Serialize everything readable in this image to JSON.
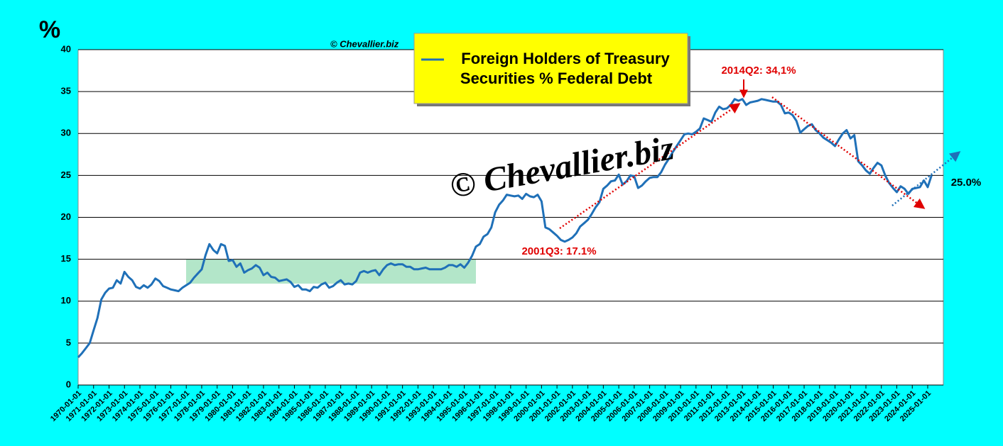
{
  "chart_data": {
    "type": "line",
    "title": [
      "Foreign Holders of Treasury",
      "Securities % Federal Debt"
    ],
    "y_label": "%",
    "watermark": "© Chevallier.biz",
    "annotations": [
      "2014Q2: 34,1%",
      "2001Q3: 17.1%",
      "25.0%"
    ],
    "color": "#1f70b8",
    "ylim": [
      0,
      40
    ],
    "yticks": [
      0,
      5,
      10,
      15,
      20,
      25,
      30,
      35,
      40
    ],
    "grid": true,
    "categories": [
      "1970-01-01",
      null,
      null,
      null,
      "1971-01-01",
      null,
      null,
      null,
      "1972-01-01",
      null,
      null,
      null,
      "1973-01-01",
      null,
      null,
      null,
      "1974-01-01",
      null,
      null,
      null,
      "1975-01-01",
      null,
      null,
      null,
      "1976-01-01",
      null,
      null,
      null,
      "1977-01-01",
      null,
      null,
      null,
      "1978-01-01",
      null,
      null,
      null,
      "1979-01-01",
      null,
      null,
      null,
      "1980-01-01",
      null,
      null,
      null,
      "1981-01-01",
      null,
      null,
      null,
      "1982-01-01",
      null,
      null,
      null,
      "1983-01-01",
      null,
      null,
      null,
      "1984-01-01",
      null,
      null,
      null,
      "1985-01-01",
      null,
      null,
      null,
      "1986-01-01",
      null,
      null,
      null,
      "1987-01-01",
      null,
      null,
      null,
      "1988-01-01",
      null,
      null,
      null,
      "1989-01-01",
      null,
      null,
      null,
      "1990-01-01",
      null,
      null,
      null,
      "1991-01-01",
      null,
      null,
      null,
      "1992-01-01",
      null,
      null,
      null,
      "1993-01-01",
      null,
      null,
      null,
      "1994-01-01",
      null,
      null,
      null,
      "1995-01-01",
      null,
      null,
      null,
      "1996-01-01",
      null,
      null,
      null,
      "1997-01-01",
      null,
      null,
      null,
      "1998-01-01",
      null,
      null,
      null,
      "1999-01-01",
      null,
      null,
      null,
      "2000-01-01",
      null,
      null,
      null,
      "2001-01-01",
      null,
      null,
      null,
      "2002-01-01",
      null,
      null,
      null,
      "2003-01-01",
      null,
      null,
      null,
      "2004-01-01",
      null,
      null,
      null,
      "2005-01-01",
      null,
      null,
      null,
      "2006-01-01",
      null,
      null,
      null,
      "2007-01-01",
      null,
      null,
      null,
      "2008-01-01",
      null,
      null,
      null,
      "2009-01-01",
      null,
      null,
      null,
      "2010-01-01",
      null,
      null,
      null,
      "2011-01-01",
      null,
      null,
      null,
      "2012-01-01",
      null,
      null,
      null,
      "2013-01-01",
      null,
      null,
      null,
      "2014-01-01",
      null,
      null,
      null,
      "2015-01-01",
      null,
      null,
      null,
      "2016-01-01",
      null,
      null,
      null,
      "2017-01-01",
      null,
      null,
      null,
      "2018-01-01",
      null,
      null,
      null,
      "2019-01-01",
      null,
      null,
      null,
      "2020-01-01",
      null,
      null,
      null,
      "2021-01-01",
      null,
      null,
      null,
      "2022-01-01",
      null,
      null,
      null,
      "2023-01-01",
      null,
      null,
      null,
      "2024-01-01",
      null,
      null,
      null,
      "2025-01-01",
      null
    ],
    "values": [
      3.3,
      3.8,
      4.4,
      5.0,
      6.5,
      8.0,
      10.2,
      11.0,
      11.5,
      11.6,
      12.5,
      12.1,
      13.5,
      12.9,
      12.5,
      11.7,
      11.5,
      11.9,
      11.6,
      12.0,
      12.7,
      12.4,
      11.8,
      11.6,
      11.4,
      11.3,
      11.2,
      11.6,
      11.9,
      12.2,
      12.8,
      13.3,
      13.8,
      15.5,
      16.8,
      16.1,
      15.7,
      16.8,
      16.6,
      14.8,
      14.9,
      14.1,
      14.5,
      13.4,
      13.7,
      13.9,
      14.3,
      14.0,
      13.1,
      13.4,
      12.9,
      12.8,
      12.4,
      12.5,
      12.6,
      12.3,
      11.7,
      11.9,
      11.4,
      11.4,
      11.2,
      11.7,
      11.6,
      12.0,
      12.2,
      11.6,
      11.8,
      12.2,
      12.5,
      12.0,
      12.1,
      12.0,
      12.4,
      13.4,
      13.6,
      13.4,
      13.6,
      13.7,
      13.1,
      13.8,
      14.3,
      14.5,
      14.3,
      14.4,
      14.4,
      14.1,
      14.1,
      13.8,
      13.8,
      13.9,
      14.0,
      13.8,
      13.8,
      13.8,
      13.8,
      14.0,
      14.3,
      14.3,
      14.1,
      14.4,
      14.0,
      14.6,
      15.4,
      16.5,
      16.8,
      17.7,
      18.0,
      18.8,
      20.6,
      21.5,
      22.0,
      22.7,
      22.6,
      22.5,
      22.6,
      22.2,
      22.8,
      22.5,
      22.4,
      22.7,
      21.9,
      18.8,
      18.6,
      18.2,
      17.8,
      17.3,
      17.1,
      17.3,
      17.6,
      18.1,
      18.9,
      19.3,
      19.7,
      20.4,
      21.2,
      21.8,
      23.4,
      23.8,
      24.3,
      24.4,
      25.1,
      23.9,
      24.3,
      25.0,
      24.9,
      23.5,
      23.8,
      24.3,
      24.7,
      24.8,
      24.8,
      25.4,
      26.3,
      27.0,
      27.8,
      28.5,
      29.2,
      29.9,
      30.0,
      29.9,
      30.2,
      30.6,
      31.8,
      31.6,
      31.4,
      32.5,
      33.2,
      32.9,
      33.0,
      33.4,
      34.1,
      33.9,
      34.1,
      33.4,
      33.7,
      33.8,
      33.9,
      34.1,
      34.0,
      33.9,
      33.8,
      33.8,
      33.4,
      32.4,
      32.5,
      32.2,
      31.5,
      30.1,
      30.5,
      30.9,
      31.1,
      30.4,
      30.0,
      29.5,
      29.2,
      28.9,
      28.5,
      29.3,
      30.0,
      30.4,
      29.4,
      29.8,
      26.7,
      26.2,
      25.6,
      25.2,
      25.9,
      26.5,
      26.2,
      25.0,
      24.1,
      23.5,
      23.0,
      23.7,
      23.4,
      22.8,
      23.4,
      23.5,
      23.6,
      24.4,
      23.6,
      25.0
    ]
  }
}
